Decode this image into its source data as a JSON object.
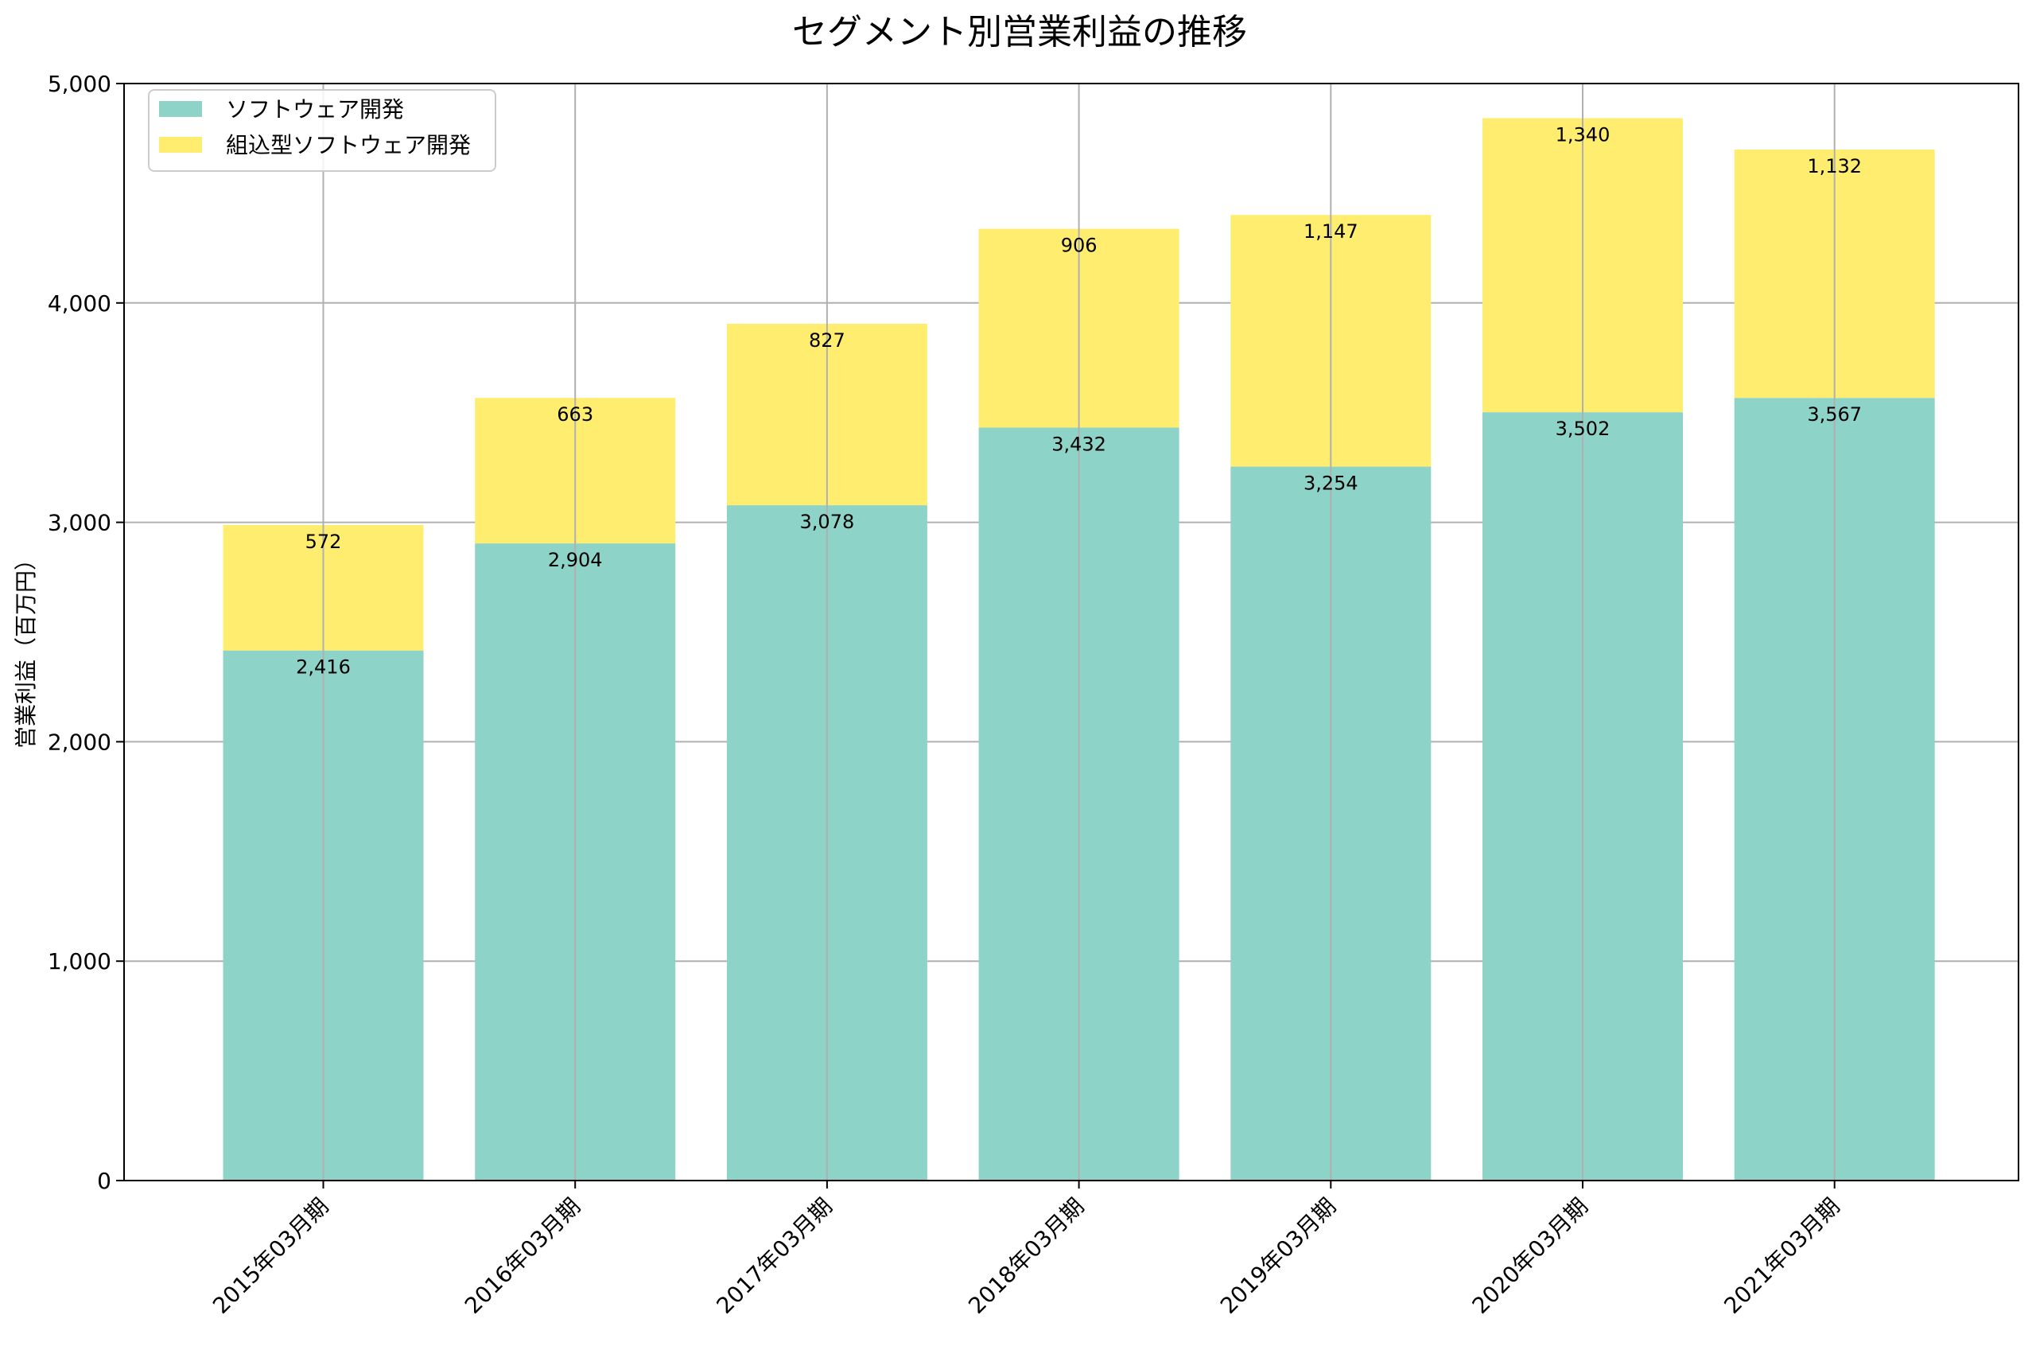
{
  "chart_data": {
    "type": "bar",
    "stacked": true,
    "title": "セグメント別営業利益の推移",
    "xlabel": "",
    "ylabel": "営業利益（百万円）",
    "ylim": [
      0,
      5000
    ],
    "yticks": [
      0,
      1000,
      2000,
      3000,
      4000,
      5000
    ],
    "ytick_labels": [
      "0",
      "1,000",
      "2,000",
      "3,000",
      "4,000",
      "5,000"
    ],
    "grid": true,
    "legend_position": "top-left",
    "categories": [
      "2015年03月期",
      "2016年03月期",
      "2017年03月期",
      "2018年03月期",
      "2019年03月期",
      "2020年03月期",
      "2021年03月期"
    ],
    "series": [
      {
        "name": "ソフトウェア開発",
        "color": "#8dd3c7",
        "values": [
          2416,
          2904,
          3078,
          3432,
          3254,
          3502,
          3567
        ],
        "labels": [
          "2,416",
          "2,904",
          "3,078",
          "3,432",
          "3,254",
          "3,502",
          "3,567"
        ]
      },
      {
        "name": "組込型ソフトウェア開発",
        "color": "#ffed6f",
        "values": [
          572,
          663,
          827,
          906,
          1147,
          1340,
          1132
        ],
        "labels": [
          "572",
          "663",
          "827",
          "906",
          "1,147",
          "1,340",
          "1,132"
        ]
      }
    ]
  }
}
